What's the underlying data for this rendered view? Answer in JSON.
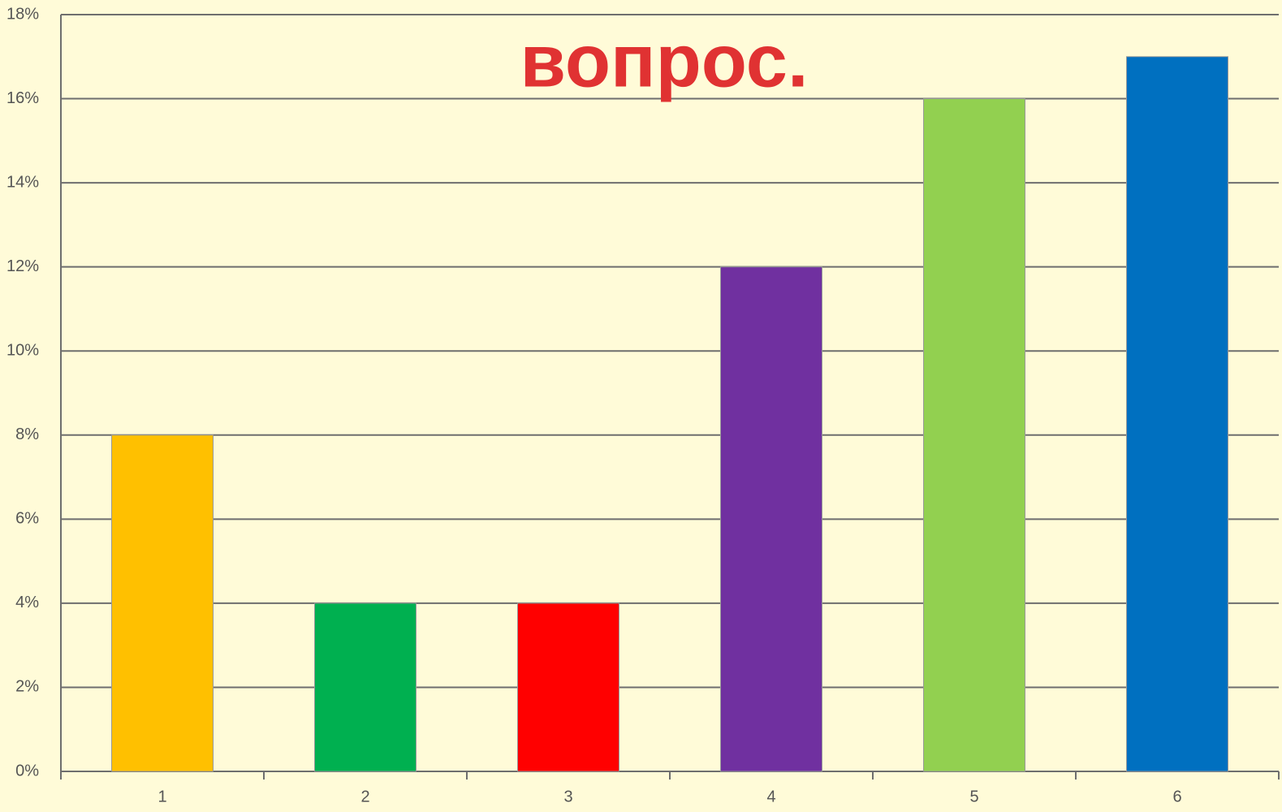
{
  "chart_data": {
    "type": "bar",
    "title": "вопрос.",
    "categories": [
      "1",
      "2",
      "3",
      "4",
      "5",
      "6"
    ],
    "values": [
      8,
      4,
      4,
      12,
      16,
      17
    ],
    "colors": [
      "#ffc000",
      "#00b050",
      "#ff0000",
      "#7030a0",
      "#92d050",
      "#0070c0"
    ],
    "ylim": [
      0,
      18
    ],
    "yticks": [
      {
        "value": 0,
        "label": "0%"
      },
      {
        "value": 2,
        "label": "2%"
      },
      {
        "value": 4,
        "label": "4%"
      },
      {
        "value": 6,
        "label": "6%"
      },
      {
        "value": 8,
        "label": "8%"
      },
      {
        "value": 10,
        "label": "10%"
      },
      {
        "value": 12,
        "label": "12%"
      },
      {
        "value": 14,
        "label": "14%"
      },
      {
        "value": 16,
        "label": "16%"
      },
      {
        "value": 18,
        "label": "18%"
      }
    ],
    "grid": true
  }
}
